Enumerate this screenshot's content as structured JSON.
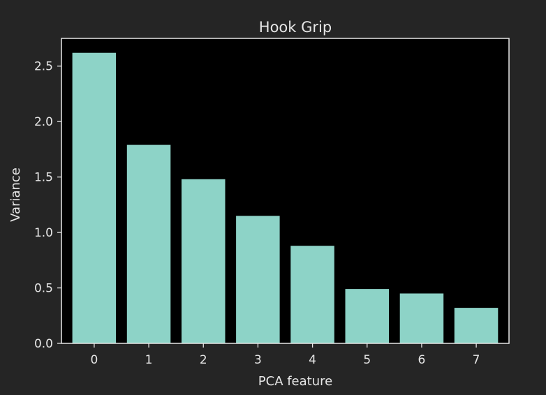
{
  "chart_data": {
    "type": "bar",
    "title": "Hook Grip",
    "xlabel": "PCA feature",
    "ylabel": "Variance",
    "categories": [
      "0",
      "1",
      "2",
      "3",
      "4",
      "5",
      "6",
      "7"
    ],
    "values": [
      2.62,
      1.79,
      1.48,
      1.15,
      0.88,
      0.49,
      0.45,
      0.32
    ],
    "ylim": [
      0,
      2.75
    ],
    "yticks": [
      "0.0",
      "0.5",
      "1.0",
      "1.5",
      "2.0",
      "2.5"
    ],
    "grid": false,
    "colors": {
      "figure_bg": "#252525",
      "plot_bg": "#000000",
      "bar": "#8dd3c7",
      "text": "#e6e6e6",
      "axis": "#e6e6e6"
    }
  }
}
